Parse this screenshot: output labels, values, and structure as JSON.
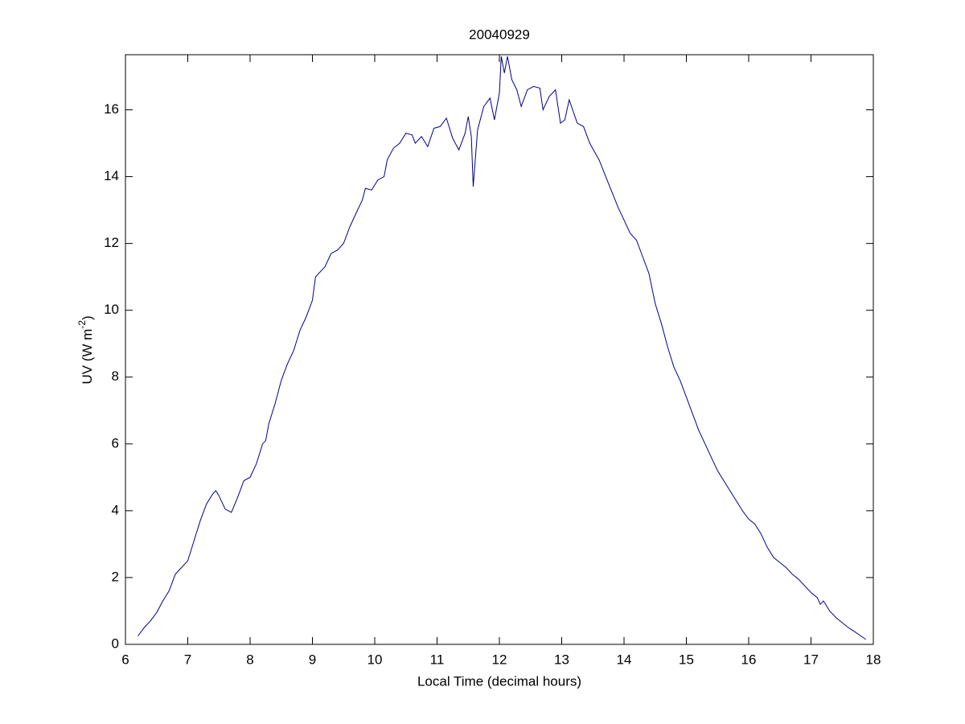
{
  "chart_data": {
    "type": "line",
    "title": "20040929",
    "xlabel": "Local Time (decimal hours)",
    "ylabel": "UV (W m",
    "ylabel_superscript": "-2",
    "ylabel_suffix": ")",
    "xlim": [
      6,
      18
    ],
    "xticks": [
      6,
      7,
      8,
      9,
      10,
      11,
      12,
      13,
      14,
      15,
      16,
      17,
      18
    ],
    "ylim": [
      0,
      17.65
    ],
    "yticks": [
      0,
      2,
      4,
      6,
      8,
      10,
      12,
      14,
      16
    ],
    "series": [
      {
        "color": "#00008b",
        "x": [
          6.2,
          6.3,
          6.4,
          6.5,
          6.6,
          6.7,
          6.8,
          6.9,
          7.0,
          7.1,
          7.2,
          7.3,
          7.4,
          7.45,
          7.5,
          7.6,
          7.7,
          7.8,
          7.9,
          8.0,
          8.1,
          8.2,
          8.25,
          8.3,
          8.4,
          8.5,
          8.6,
          8.7,
          8.8,
          8.9,
          9.0,
          9.05,
          9.2,
          9.3,
          9.4,
          9.5,
          9.6,
          9.7,
          9.8,
          9.85,
          9.95,
          10.05,
          10.15,
          10.2,
          10.3,
          10.4,
          10.5,
          10.6,
          10.65,
          10.75,
          10.85,
          10.95,
          11.05,
          11.15,
          11.25,
          11.35,
          11.45,
          11.5,
          11.55,
          11.58,
          11.65,
          11.75,
          11.85,
          11.92,
          12.0,
          12.03,
          12.08,
          12.13,
          12.2,
          12.28,
          12.35,
          12.45,
          12.55,
          12.65,
          12.7,
          12.8,
          12.9,
          12.98,
          13.05,
          13.12,
          13.25,
          13.35,
          13.45,
          13.6,
          13.75,
          13.9,
          14.0,
          14.1,
          14.2,
          14.3,
          14.4,
          14.5,
          14.6,
          14.7,
          14.8,
          14.9,
          15.0,
          15.1,
          15.2,
          15.3,
          15.4,
          15.5,
          15.6,
          15.7,
          15.8,
          15.9,
          16.0,
          16.1,
          16.2,
          16.3,
          16.4,
          16.5,
          16.6,
          16.7,
          16.8,
          16.9,
          17.0,
          17.1,
          17.15,
          17.2,
          17.3,
          17.4,
          17.5,
          17.6,
          17.7,
          17.8,
          17.88
        ],
        "values": [
          0.25,
          0.5,
          0.7,
          0.95,
          1.3,
          1.6,
          2.1,
          2.3,
          2.5,
          3.1,
          3.7,
          4.2,
          4.5,
          4.6,
          4.45,
          4.05,
          3.95,
          4.4,
          4.9,
          5.0,
          5.4,
          6.0,
          6.1,
          6.6,
          7.2,
          7.9,
          8.4,
          8.8,
          9.4,
          9.8,
          10.3,
          11.0,
          11.3,
          11.7,
          11.8,
          12.0,
          12.5,
          12.9,
          13.3,
          13.65,
          13.6,
          13.9,
          14.0,
          14.5,
          14.85,
          15.0,
          15.3,
          15.25,
          15.0,
          15.2,
          14.9,
          15.45,
          15.5,
          15.75,
          15.15,
          14.8,
          15.3,
          15.8,
          15.2,
          13.7,
          15.4,
          16.1,
          16.35,
          15.7,
          16.5,
          17.6,
          17.1,
          17.6,
          16.9,
          16.6,
          16.1,
          16.6,
          16.7,
          16.65,
          16.0,
          16.4,
          16.6,
          15.6,
          15.7,
          16.3,
          15.6,
          15.5,
          15.0,
          14.5,
          13.8,
          13.1,
          12.7,
          12.3,
          12.1,
          11.6,
          11.1,
          10.2,
          9.6,
          8.9,
          8.3,
          7.9,
          7.4,
          6.9,
          6.4,
          6.0,
          5.6,
          5.2,
          4.9,
          4.6,
          4.3,
          4.0,
          3.75,
          3.6,
          3.3,
          2.9,
          2.6,
          2.45,
          2.3,
          2.1,
          1.95,
          1.75,
          1.55,
          1.4,
          1.2,
          1.3,
          1.0,
          0.8,
          0.65,
          0.5,
          0.38,
          0.25,
          0.15
        ]
      }
    ]
  }
}
